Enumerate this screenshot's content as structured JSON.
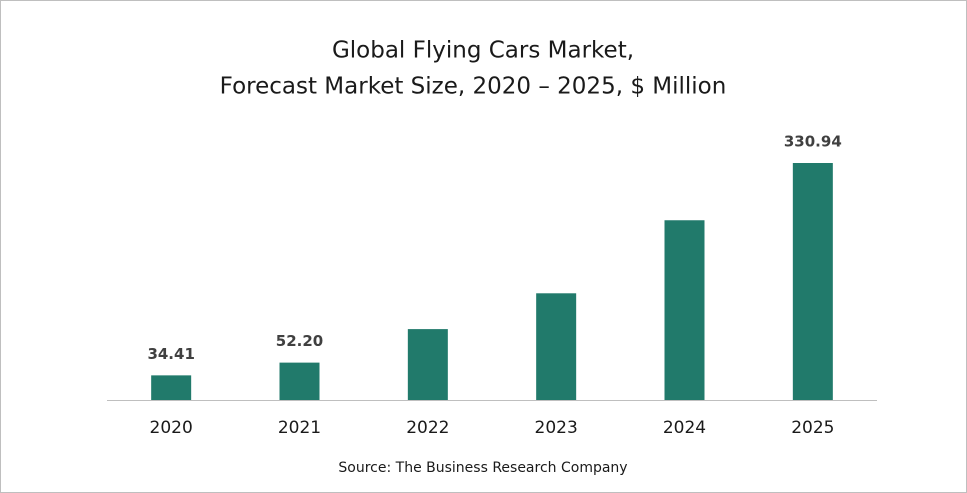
{
  "chart_data": {
    "type": "bar",
    "title": "Global Flying Cars Market,",
    "subtitle": "Forecast Market Size, 2020 – 2025, $ Million",
    "categories": [
      "2020",
      "2021",
      "2022",
      "2023",
      "2024",
      "2025"
    ],
    "values": [
      34.41,
      52.2,
      99,
      149,
      251,
      330.94
    ],
    "value_labels": [
      "34.41",
      "52.20",
      null,
      null,
      null,
      "330.94"
    ],
    "color": "#217a6b",
    "source": "Source: The Business Research Company"
  }
}
